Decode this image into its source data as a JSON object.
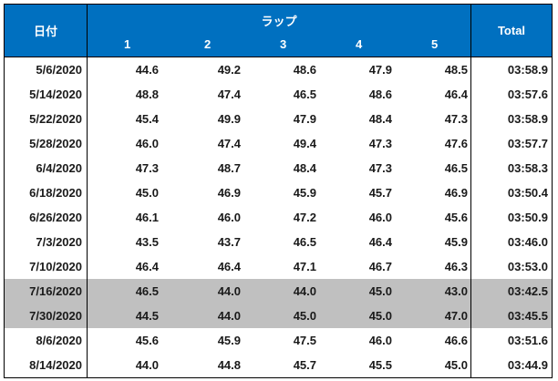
{
  "table": {
    "header": {
      "date": "日付",
      "group": "ラップ",
      "laps": [
        "1",
        "2",
        "3",
        "4",
        "5"
      ],
      "total": "Total"
    },
    "rows": [
      {
        "date": "5/6/2020",
        "laps": [
          "44.6",
          "49.2",
          "48.6",
          "47.9",
          "48.5"
        ],
        "total": "03:58.9",
        "highlight": false
      },
      {
        "date": "5/14/2020",
        "laps": [
          "48.8",
          "47.4",
          "46.5",
          "48.6",
          "46.4"
        ],
        "total": "03:57.6",
        "highlight": false
      },
      {
        "date": "5/22/2020",
        "laps": [
          "45.4",
          "49.9",
          "47.9",
          "48.4",
          "47.3"
        ],
        "total": "03:58.9",
        "highlight": false
      },
      {
        "date": "5/28/2020",
        "laps": [
          "46.0",
          "47.4",
          "49.4",
          "47.3",
          "47.6"
        ],
        "total": "03:57.7",
        "highlight": false
      },
      {
        "date": "6/4/2020",
        "laps": [
          "47.3",
          "48.7",
          "48.4",
          "47.3",
          "46.5"
        ],
        "total": "03:58.3",
        "highlight": false
      },
      {
        "date": "6/18/2020",
        "laps": [
          "45.0",
          "46.9",
          "45.9",
          "45.7",
          "46.9"
        ],
        "total": "03:50.4",
        "highlight": false
      },
      {
        "date": "6/26/2020",
        "laps": [
          "46.1",
          "46.0",
          "47.2",
          "46.0",
          "45.6"
        ],
        "total": "03:50.9",
        "highlight": false
      },
      {
        "date": "7/3/2020",
        "laps": [
          "43.5",
          "43.7",
          "46.5",
          "46.4",
          "45.9"
        ],
        "total": "03:46.0",
        "highlight": false
      },
      {
        "date": "7/10/2020",
        "laps": [
          "46.4",
          "46.4",
          "47.1",
          "46.7",
          "46.3"
        ],
        "total": "03:53.0",
        "highlight": false
      },
      {
        "date": "7/16/2020",
        "laps": [
          "46.5",
          "44.0",
          "44.0",
          "45.0",
          "43.0"
        ],
        "total": "03:42.5",
        "highlight": true
      },
      {
        "date": "7/30/2020",
        "laps": [
          "44.5",
          "44.0",
          "45.0",
          "45.0",
          "47.0"
        ],
        "total": "03:45.5",
        "highlight": true
      },
      {
        "date": "8/6/2020",
        "laps": [
          "45.6",
          "45.9",
          "47.5",
          "46.0",
          "46.6"
        ],
        "total": "03:51.6",
        "highlight": false
      },
      {
        "date": "8/14/2020",
        "laps": [
          "44.0",
          "44.8",
          "45.7",
          "45.5",
          "45.0"
        ],
        "total": "03:44.9",
        "highlight": false
      }
    ],
    "colors": {
      "header_bg": "#0070c0",
      "header_text": "#ffffff",
      "highlight_bg": "#c0c0c0"
    }
  }
}
